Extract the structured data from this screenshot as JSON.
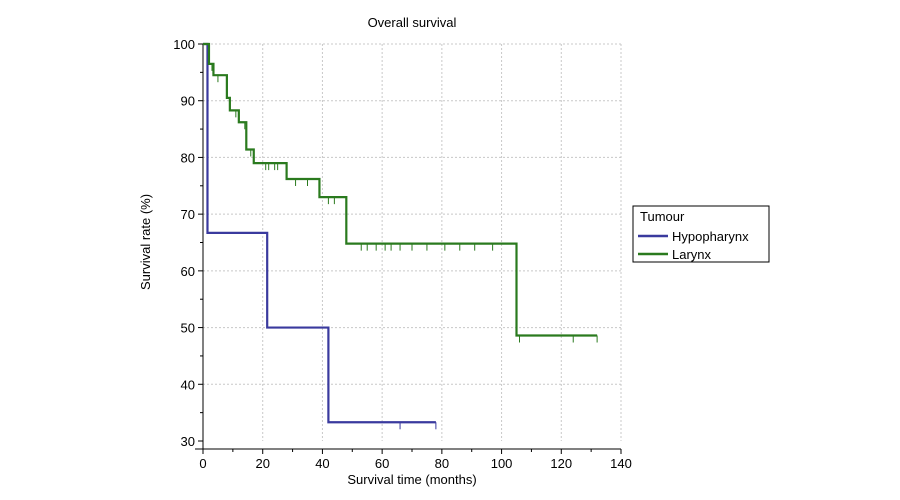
{
  "chart_data": {
    "type": "line",
    "title": "Overall survival",
    "xlabel": "Survival time (months)",
    "ylabel": "Survival rate (%)",
    "xlim": [
      0,
      140
    ],
    "ylim": [
      30,
      100
    ],
    "xticks": [
      0,
      20,
      40,
      60,
      80,
      100,
      120,
      140
    ],
    "yticks": [
      30,
      40,
      50,
      60,
      70,
      80,
      90,
      100
    ],
    "grid": true,
    "legend": {
      "title": "Tumour",
      "placement": "right"
    },
    "series": [
      {
        "name": "Hypopharynx",
        "color": "#3a3a9e",
        "steps": [
          [
            0,
            100
          ],
          [
            1.5,
            66.7
          ],
          [
            21.5,
            50
          ],
          [
            42,
            33.3
          ],
          [
            78,
            33.3
          ]
        ],
        "censored": [
          66,
          78
        ]
      },
      {
        "name": "Larynx",
        "color": "#2a7a1e",
        "steps": [
          [
            0,
            100
          ],
          [
            2,
            96.5
          ],
          [
            3.5,
            94.5
          ],
          [
            8,
            90.5
          ],
          [
            9,
            88.3
          ],
          [
            12,
            86.2
          ],
          [
            14.5,
            81.4
          ],
          [
            17,
            79
          ],
          [
            28,
            76.2
          ],
          [
            39,
            73
          ],
          [
            48,
            64.8
          ],
          [
            105,
            48.6
          ],
          [
            132,
            48.6
          ]
        ],
        "censored": [
          3,
          5,
          11,
          14,
          16,
          21,
          22,
          24,
          25,
          31,
          35,
          42,
          44,
          53,
          55,
          58,
          61,
          63,
          66,
          70,
          75,
          81,
          86,
          91,
          97,
          106,
          124,
          132
        ]
      }
    ]
  }
}
